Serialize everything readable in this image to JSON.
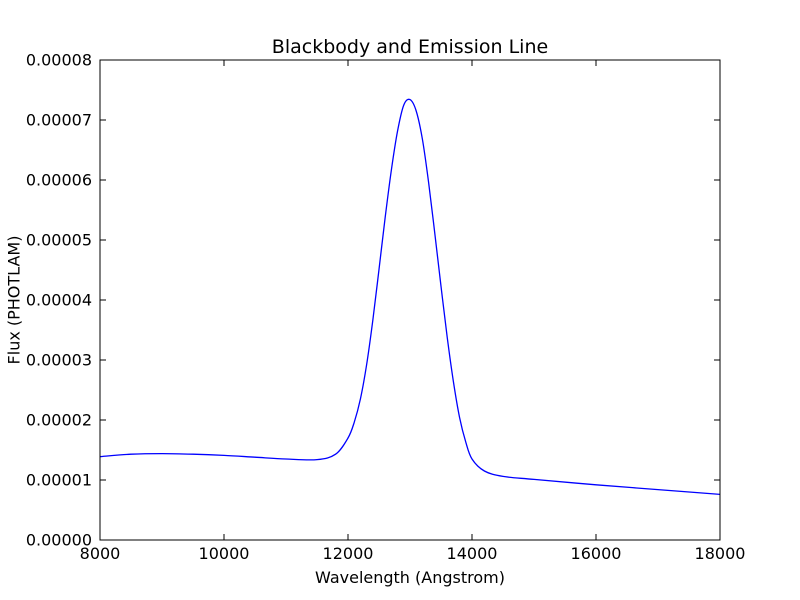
{
  "chart_data": {
    "type": "line",
    "title": "Blackbody and Emission Line",
    "xlabel": "Wavelength (Angstrom)",
    "ylabel": "Flux (PHOTLAM)",
    "xlim": [
      8000,
      18000
    ],
    "ylim": [
      0,
      8e-05
    ],
    "x_ticks": [
      8000,
      10000,
      12000,
      14000,
      16000,
      18000
    ],
    "x_tick_labels": [
      "8000",
      "10000",
      "12000",
      "14000",
      "16000",
      "18000"
    ],
    "y_ticks": [
      0,
      1e-05,
      2e-05,
      3e-05,
      4e-05,
      5e-05,
      6e-05,
      7e-05,
      8e-05
    ],
    "y_tick_labels": [
      "0.00000",
      "0.00001",
      "0.00002",
      "0.00003",
      "0.00004",
      "0.00005",
      "0.00006",
      "0.00007",
      "0.00008"
    ],
    "grid": false,
    "series": [
      {
        "color": "#0000ff",
        "x": [
          8000,
          8500,
          9000,
          9500,
          10000,
          10500,
          11000,
          11500,
          11800,
          12000,
          12100,
          12200,
          12300,
          12400,
          12500,
          12600,
          12700,
          12800,
          12900,
          13000,
          13100,
          13200,
          13300,
          13400,
          13500,
          13600,
          13700,
          13800,
          13900,
          14000,
          14200,
          14500,
          15000,
          16000,
          17000,
          18000
        ],
        "y": [
          1.39e-05,
          1.43e-05,
          1.44e-05,
          1.43e-05,
          1.41e-05,
          1.38e-05,
          1.35e-05,
          1.34e-05,
          1.43e-05,
          1.7e-05,
          1.96e-05,
          2.35e-05,
          2.92e-05,
          3.66e-05,
          4.51e-05,
          5.38e-05,
          6.17e-05,
          6.82e-05,
          7.25e-05,
          7.34e-05,
          7.15e-05,
          6.68e-05,
          5.96e-05,
          5.11e-05,
          4.23e-05,
          3.38e-05,
          2.64e-05,
          2.04e-05,
          1.63e-05,
          1.35e-05,
          1.15e-05,
          1.06e-05,
          1.01e-05,
          9.2e-06,
          8.4e-06,
          7.6e-06
        ]
      }
    ]
  }
}
